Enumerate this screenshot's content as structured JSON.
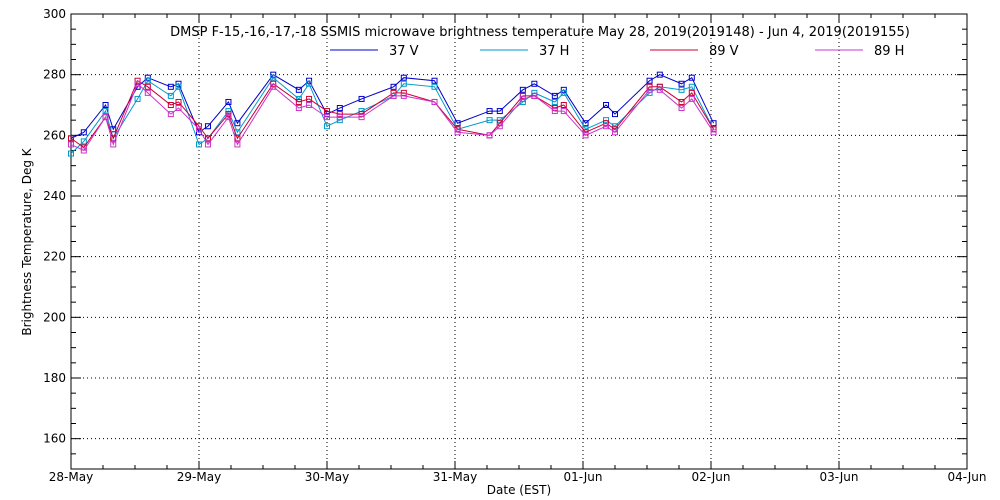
{
  "chart_data": {
    "type": "line",
    "title": "DMSP F-15,-16,-17,-18 SSMIS microwave brightness temperature May 28, 2019(2019148) - Jun  4, 2019(2019155)",
    "xlabel": "Date (EST)",
    "ylabel": "Brightness Temperature, Deg K",
    "x_ticks": [
      "28-May",
      "29-May",
      "30-May",
      "31-May",
      "01-Jun",
      "02-Jun",
      "03-Jun",
      "04-Jun"
    ],
    "y_ticks": [
      "160",
      "180",
      "200",
      "220",
      "240",
      "260",
      "280",
      "300"
    ],
    "xlim": [
      0,
      7
    ],
    "ylim": [
      150,
      300
    ],
    "grid": true,
    "legend_position": "top",
    "x": [
      0.0,
      0.1,
      0.27,
      0.33,
      0.52,
      0.6,
      0.78,
      0.84,
      1.0,
      1.07,
      1.23,
      1.3,
      1.58,
      1.78,
      1.86,
      2.0,
      2.1,
      2.27,
      2.52,
      2.6,
      2.84,
      3.02,
      3.27,
      3.35,
      3.53,
      3.62,
      3.78,
      3.85,
      4.02,
      4.18,
      4.25,
      4.52,
      4.6,
      4.77,
      4.85,
      5.02
    ],
    "series": [
      {
        "name": "37 V",
        "color": "#0000cc",
        "values": [
          259,
          261,
          270,
          262,
          276,
          279,
          276,
          277,
          261,
          263,
          271,
          264,
          280,
          275,
          278,
          267,
          269,
          272,
          276,
          279,
          278,
          264,
          268,
          268,
          275,
          277,
          273,
          275,
          264,
          270,
          267,
          278,
          280,
          277,
          279,
          264
        ]
      },
      {
        "name": "37 H",
        "color": "#0099cc",
        "values": [
          254,
          258,
          268,
          259,
          272,
          278,
          273,
          276,
          257,
          259,
          268,
          261,
          279,
          272,
          277,
          263,
          265,
          268,
          273,
          277,
          276,
          262,
          265,
          265,
          271,
          274,
          271,
          274,
          262,
          265,
          263,
          274,
          276,
          275,
          276,
          262
        ]
      },
      {
        "name": "89 V",
        "color": "#cc0033",
        "values": [
          259,
          256,
          266,
          259,
          278,
          276,
          270,
          271,
          263,
          259,
          267,
          259,
          277,
          271,
          272,
          268,
          267,
          267,
          274,
          274,
          271,
          262,
          260,
          264,
          273,
          273,
          269,
          270,
          261,
          264,
          262,
          276,
          276,
          271,
          274,
          262
        ]
      },
      {
        "name": "89 H",
        "color": "#cc33cc",
        "values": [
          257,
          255,
          266,
          257,
          277,
          274,
          267,
          269,
          262,
          257,
          266,
          257,
          276,
          269,
          270,
          266,
          266,
          266,
          273,
          273,
          271,
          261,
          260,
          263,
          272,
          273,
          268,
          268,
          260,
          263,
          261,
          275,
          275,
          269,
          272,
          261
        ]
      }
    ]
  }
}
